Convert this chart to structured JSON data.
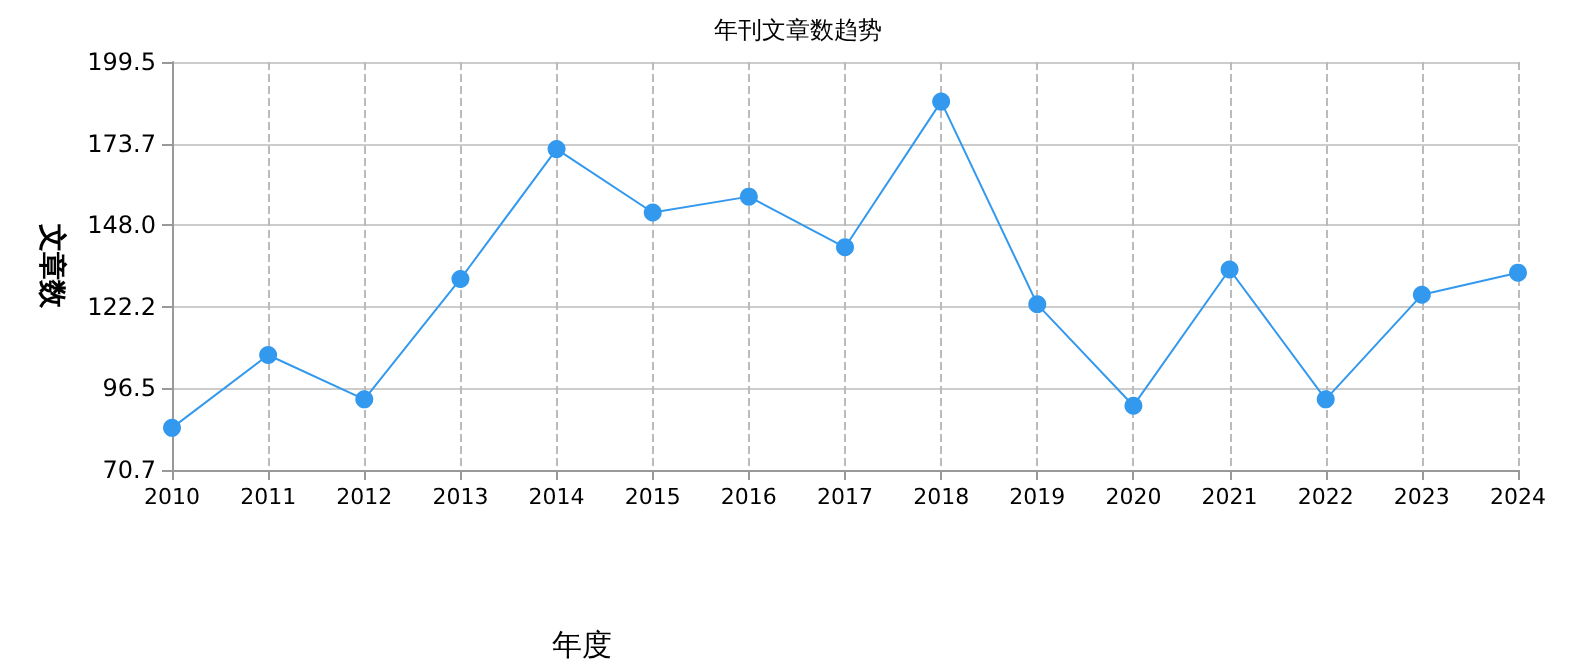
{
  "chart_data": {
    "type": "line",
    "title": "年刊文章数趋势",
    "xlabel": "年度",
    "ylabel": "文章数",
    "categories": [
      "2010",
      "2011",
      "2012",
      "2013",
      "2014",
      "2015",
      "2016",
      "2017",
      "2018",
      "2019",
      "2020",
      "2021",
      "2022",
      "2023",
      "2024"
    ],
    "series": [
      {
        "color": "#3399ee",
        "values": [
          84,
          107,
          93,
          131,
          172,
          152,
          157,
          141,
          187,
          123,
          91,
          134,
          93,
          126,
          133
        ]
      }
    ],
    "ylim": [
      70.7,
      199.5
    ],
    "yticks": [
      70.7,
      96.5,
      122.2,
      {
        "value": 148,
        "label": "148.0"
      },
      173.7,
      199.5
    ],
    "grid": true,
    "marker": "circle",
    "line_style": "solid"
  }
}
